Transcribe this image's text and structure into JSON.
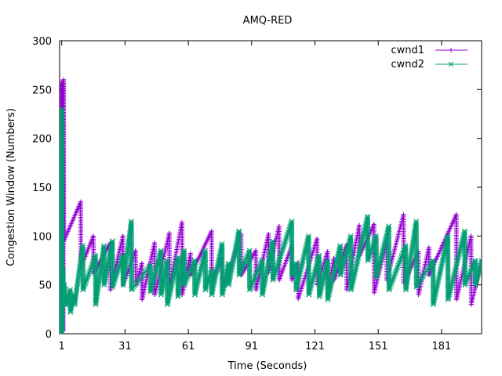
{
  "chart_data": {
    "type": "line",
    "title": "AMQ-RED",
    "xlabel": "Time (Seconds)",
    "ylabel": "Congestion Window (Numbers)",
    "xlim": [
      0,
      200
    ],
    "ylim": [
      0,
      300
    ],
    "xticks": [
      1,
      31,
      61,
      91,
      121,
      151,
      181
    ],
    "yticks": [
      0,
      50,
      100,
      150,
      200,
      250,
      300
    ],
    "grid": false,
    "legend_position": "top-right",
    "series": [
      {
        "name": "cwnd1",
        "color": "#9400d3",
        "marker": "plus",
        "x": [
          0,
          0.4,
          0.45,
          0.9,
          1.0,
          1.3,
          1.35,
          1.6,
          1.65,
          1.9,
          2.0,
          10,
          10.1,
          16,
          16.1,
          24,
          24.1,
          30,
          30.1,
          36,
          36.1,
          39,
          39.1,
          45,
          45.1,
          52,
          52.1,
          58,
          58.1,
          62,
          62.1,
          72,
          72.1,
          77,
          77.1,
          86,
          86.1,
          93,
          93.1,
          99,
          99.1,
          104,
          104.1,
          110,
          110.1,
          113,
          113.1,
          122,
          122.1,
          127,
          127.1,
          130,
          130.1,
          136,
          136.1,
          142,
          142.1,
          149,
          149.1,
          155,
          155.1,
          163,
          163.1,
          170,
          170.1,
          175,
          175.1,
          188,
          188.1,
          195,
          195.1,
          200
        ],
        "y": [
          0,
          148,
          0,
          258,
          5,
          255,
          4,
          258,
          3,
          260,
          95,
          135,
          68,
          100,
          62,
          93,
          45,
          100,
          50,
          85,
          50,
          72,
          35,
          93,
          40,
          103,
          48,
          114,
          40,
          82,
          60,
          105,
          52,
          78,
          42,
          102,
          60,
          85,
          45,
          102,
          63,
          110,
          55,
          90,
          55,
          73,
          36,
          97,
          50,
          84,
          45,
          77,
          55,
          91,
          45,
          111,
          80,
          112,
          42,
          95,
          55,
          122,
          52,
          84,
          40,
          88,
          60,
          122,
          35,
          100,
          30,
          75
        ]
      },
      {
        "name": "cwnd2",
        "color": "#009e73",
        "marker": "cross",
        "x": [
          0,
          0.3,
          0.35,
          0.7,
          0.8,
          1.0,
          1.05,
          1.6,
          1.7,
          2.3,
          2.4,
          3,
          3.1,
          5,
          5.1,
          7,
          7.1,
          11,
          11.1,
          17,
          17.1,
          21,
          21.1,
          25,
          25.1,
          30,
          30.1,
          34,
          34.1,
          43,
          43.1,
          48,
          48.1,
          51,
          51.1,
          56,
          56.1,
          59,
          59.1,
          64,
          64.1,
          69,
          69.1,
          72,
          72.1,
          77,
          77.1,
          80,
          80.1,
          85,
          85.1,
          90,
          90.1,
          96,
          96.1,
          101,
          101.1,
          110,
          110.1,
          112,
          112.1,
          118,
          118.1,
          123,
          123.1,
          127,
          127.1,
          133,
          133.1,
          138,
          138.1,
          146,
          146.1,
          150,
          150.1,
          156,
          156.1,
          164,
          164.1,
          169,
          169.1,
          177,
          177.1,
          184,
          184.1,
          192,
          192.1,
          197,
          197.1,
          200
        ],
        "y": [
          0,
          145,
          0,
          200,
          3,
          230,
          2,
          65,
          35,
          50,
          30,
          35,
          30,
          45,
          22,
          40,
          30,
          90,
          45,
          80,
          30,
          90,
          50,
          95,
          48,
          80,
          50,
          115,
          45,
          70,
          43,
          85,
          40,
          75,
          30,
          78,
          38,
          85,
          50,
          75,
          40,
          85,
          45,
          65,
          40,
          92,
          40,
          72,
          50,
          105,
          60,
          85,
          45,
          75,
          40,
          95,
          55,
          115,
          60,
          72,
          45,
          100,
          40,
          80,
          38,
          75,
          35,
          90,
          60,
          100,
          45,
          120,
          75,
          100,
          58,
          110,
          45,
          90,
          45,
          115,
          48,
          75,
          30,
          100,
          35,
          105,
          50,
          75,
          50,
          75
        ]
      }
    ]
  }
}
